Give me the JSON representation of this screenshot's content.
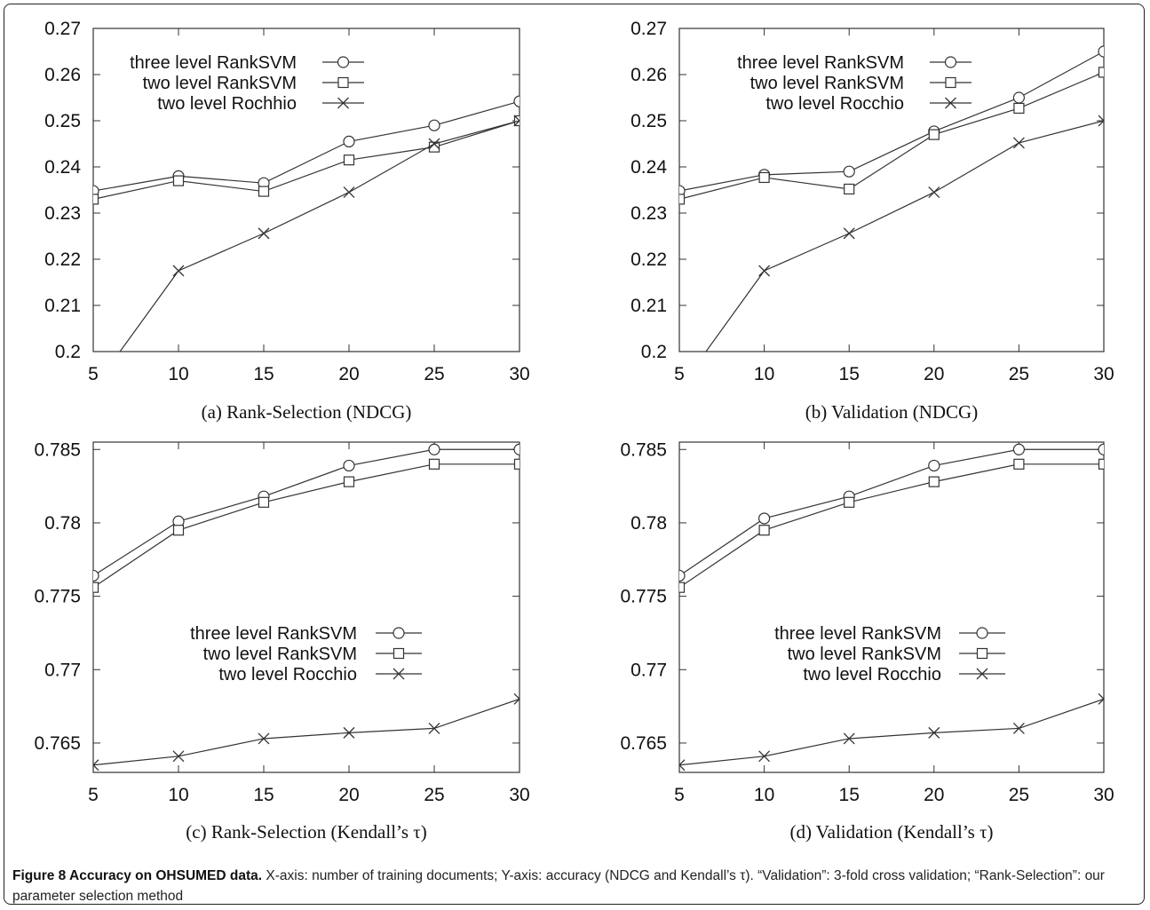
{
  "chart_data": [
    {
      "type": "line",
      "subtitle": "(a) Rank-Selection (NDCG)",
      "x": [
        5,
        10,
        15,
        20,
        25,
        30
      ],
      "xlim": [
        5,
        30
      ],
      "ylim": [
        0.2,
        0.27
      ],
      "xticks": [
        "5",
        "10",
        "15",
        "20",
        "25",
        "30"
      ],
      "yticks": [
        "0.2",
        "0.21",
        "0.22",
        "0.23",
        "0.24",
        "0.25",
        "0.26",
        "0.27"
      ],
      "legend_position": "top-right",
      "series": [
        {
          "name": "three level RankSVM",
          "marker": "circle",
          "values": [
            0.2348,
            0.238,
            0.2365,
            0.2455,
            0.249,
            0.2542
          ]
        },
        {
          "name": "two level RankSVM",
          "marker": "square",
          "values": [
            0.233,
            0.237,
            0.2347,
            0.2415,
            0.2443,
            0.25
          ]
        },
        {
          "name": "two level Rochhio",
          "marker": "cross",
          "values": [
            0.192,
            0.2175,
            0.2256,
            0.2345,
            0.245,
            0.25
          ]
        }
      ]
    },
    {
      "type": "line",
      "subtitle": "(b) Validation (NDCG)",
      "x": [
        5,
        10,
        15,
        20,
        25,
        30
      ],
      "xlim": [
        5,
        30
      ],
      "ylim": [
        0.2,
        0.27
      ],
      "xticks": [
        "5",
        "10",
        "15",
        "20",
        "25",
        "30"
      ],
      "yticks": [
        "0.2",
        "0.21",
        "0.22",
        "0.23",
        "0.24",
        "0.25",
        "0.26",
        "0.27"
      ],
      "legend_position": "top-right",
      "series": [
        {
          "name": "three level RankSVM",
          "marker": "circle",
          "values": [
            0.2348,
            0.2383,
            0.239,
            0.2477,
            0.255,
            0.265
          ]
        },
        {
          "name": "two level RankSVM",
          "marker": "square",
          "values": [
            0.233,
            0.2377,
            0.2352,
            0.247,
            0.2527,
            0.2605
          ]
        },
        {
          "name": "two level Rocchio",
          "marker": "cross",
          "values": [
            0.192,
            0.2175,
            0.2256,
            0.2345,
            0.2452,
            0.25
          ]
        }
      ]
    },
    {
      "type": "line",
      "subtitle": "(c) Rank-Selection (Kendall’s τ)",
      "x": [
        5,
        10,
        15,
        20,
        25,
        30
      ],
      "xlim": [
        5,
        30
      ],
      "ylim": [
        0.763,
        0.7855
      ],
      "xticks": [
        "5",
        "10",
        "15",
        "20",
        "25",
        "30"
      ],
      "yticks": [
        "0.765",
        "0.77",
        "0.775",
        "0.78",
        "0.785"
      ],
      "legend_position": "center-right",
      "series": [
        {
          "name": "three level RankSVM",
          "marker": "circle",
          "values": [
            0.7764,
            0.7801,
            0.7818,
            0.7839,
            0.785,
            0.785
          ]
        },
        {
          "name": "two level RankSVM",
          "marker": "square",
          "values": [
            0.7756,
            0.7795,
            0.7814,
            0.7828,
            0.784,
            0.784
          ]
        },
        {
          "name": "two level Rocchio",
          "marker": "cross",
          "values": [
            0.7635,
            0.7641,
            0.7653,
            0.7657,
            0.766,
            0.768
          ]
        }
      ]
    },
    {
      "type": "line",
      "subtitle": "(d) Validation (Kendall’s τ)",
      "x": [
        5,
        10,
        15,
        20,
        25,
        30
      ],
      "xlim": [
        5,
        30
      ],
      "ylim": [
        0.763,
        0.7855
      ],
      "xticks": [
        "5",
        "10",
        "15",
        "20",
        "25",
        "30"
      ],
      "yticks": [
        "0.765",
        "0.77",
        "0.775",
        "0.78",
        "0.785"
      ],
      "legend_position": "center-right",
      "series": [
        {
          "name": "three level RankSVM",
          "marker": "circle",
          "values": [
            0.7764,
            0.7803,
            0.7818,
            0.7839,
            0.785,
            0.785
          ]
        },
        {
          "name": "two level RankSVM",
          "marker": "square",
          "values": [
            0.7756,
            0.7795,
            0.7814,
            0.7828,
            0.784,
            0.784
          ]
        },
        {
          "name": "two level Rocchio",
          "marker": "cross",
          "values": [
            0.7635,
            0.7641,
            0.7653,
            0.7657,
            0.766,
            0.768
          ]
        }
      ]
    }
  ],
  "caption": {
    "label": "Figure 8 Accuracy on OHSUMED data.",
    "text": "X-axis: number of training documents; Y-axis: accuracy (NDCG and Kendall’s τ). “Validation”: 3-fold cross validation; “Rank-Selection”: our parameter selection method"
  },
  "colors": {
    "line": "#333333",
    "text": "#111111"
  }
}
